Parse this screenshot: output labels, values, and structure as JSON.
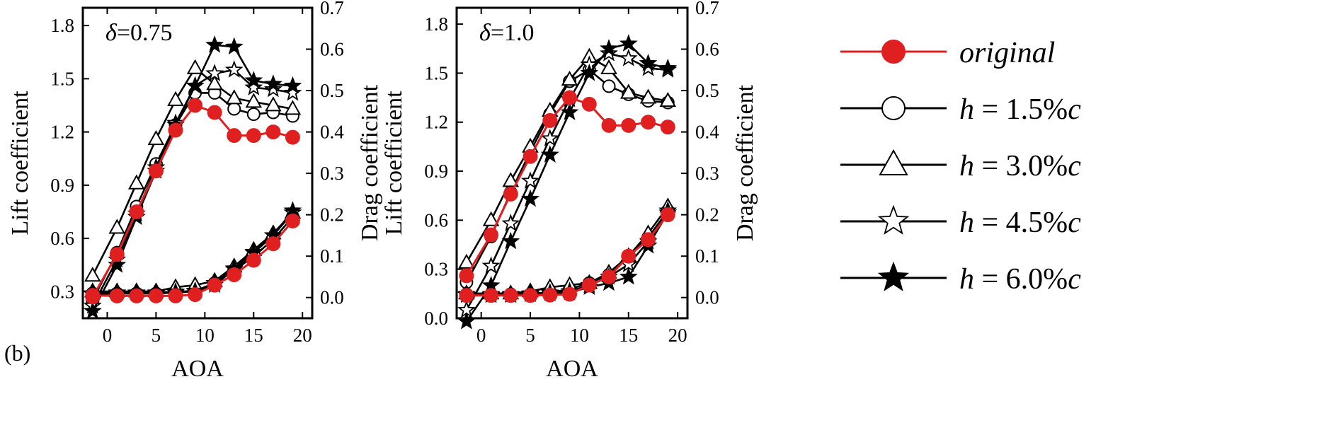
{
  "figure_label": "(b)",
  "colors": {
    "original": "#e02020",
    "modified": "#000000"
  },
  "legend": [
    {
      "key": "original",
      "parts": [
        "original"
      ],
      "marker": "circle",
      "filled": true,
      "color": "#e02020"
    },
    {
      "key": "h15",
      "parts": [
        "h",
        " = 1.5%",
        "c"
      ],
      "marker": "circle",
      "filled": false,
      "color": "#000000"
    },
    {
      "key": "h30",
      "parts": [
        "h",
        " = 3.0%",
        "c"
      ],
      "marker": "triangle",
      "filled": false,
      "color": "#000000"
    },
    {
      "key": "h45",
      "parts": [
        "h",
        " = 4.5%",
        "c"
      ],
      "marker": "star",
      "filled": false,
      "color": "#000000"
    },
    {
      "key": "h60",
      "parts": [
        "h",
        " = 6.0%",
        "c"
      ],
      "marker": "star",
      "filled": true,
      "color": "#000000"
    }
  ],
  "chart_data": [
    {
      "type": "line",
      "panel_label": {
        "symbol": "δ",
        "value": "=0.75"
      },
      "xlabel": "AOA",
      "ylabel_left": "Lift coefficient",
      "ylabel_right": "Drag coefficient",
      "xlim": [
        -2.5,
        21
      ],
      "ylim_left": [
        0.15,
        1.9
      ],
      "ylim_right": [
        -0.05,
        0.7
      ],
      "xticks": [
        "0",
        "5",
        "10",
        "15",
        "20"
      ],
      "xtick_values": [
        0,
        5,
        10,
        15,
        20
      ],
      "yticks_left": [
        "0.3",
        "0.6",
        "0.9",
        "1.2",
        "1.5",
        "1.8"
      ],
      "ytick_values_left": [
        0.3,
        0.6,
        0.9,
        1.2,
        1.5,
        1.8
      ],
      "yticks_right": [
        "0.0",
        "0.1",
        "0.2",
        "0.3",
        "0.4",
        "0.5",
        "0.6",
        "0.7"
      ],
      "ytick_values_right": [
        0.0,
        0.1,
        0.2,
        0.3,
        0.4,
        0.5,
        0.6,
        0.7
      ],
      "series": [
        {
          "name": "original",
          "axis": "lift",
          "x": [
            -1.5,
            1,
            3,
            5,
            7,
            9,
            11,
            13,
            15,
            17,
            19
          ],
          "values": [
            0.27,
            0.51,
            0.75,
            0.98,
            1.21,
            1.35,
            1.31,
            1.18,
            1.18,
            1.2,
            1.17
          ]
        },
        {
          "name": "h = 1.5%c",
          "axis": "lift",
          "x": [
            -1.5,
            1,
            3,
            5,
            7,
            9,
            11,
            13,
            15,
            17,
            19
          ],
          "values": [
            0.25,
            0.52,
            0.78,
            1.02,
            1.24,
            1.42,
            1.42,
            1.33,
            1.3,
            1.31,
            1.29
          ]
        },
        {
          "name": "h = 3.0%c",
          "axis": "lift",
          "x": [
            -1.5,
            1,
            3,
            5,
            7,
            9,
            11,
            13,
            15,
            17,
            19
          ],
          "values": [
            0.39,
            0.66,
            0.91,
            1.16,
            1.38,
            1.56,
            1.47,
            1.39,
            1.37,
            1.35,
            1.33
          ]
        },
        {
          "name": "h = 4.5%c",
          "axis": "lift",
          "x": [
            -1.5,
            1,
            3,
            5,
            7,
            9,
            11,
            13,
            15,
            17,
            19
          ],
          "values": [
            0.22,
            0.48,
            0.74,
            1.0,
            1.25,
            1.46,
            1.53,
            1.55,
            1.45,
            1.44,
            1.42
          ]
        },
        {
          "name": "h = 6.0%c",
          "axis": "lift",
          "x": [
            -1.5,
            1,
            3,
            5,
            7,
            9,
            11,
            13,
            15,
            17,
            19
          ],
          "values": [
            0.19,
            0.45,
            0.72,
            0.98,
            1.24,
            1.46,
            1.69,
            1.68,
            1.49,
            1.47,
            1.46
          ]
        },
        {
          "name": "original",
          "axis": "drag",
          "x": [
            -1.5,
            1,
            3,
            5,
            7,
            9,
            11,
            13,
            15,
            17,
            19
          ],
          "values": [
            0.005,
            0.004,
            0.004,
            0.004,
            0.004,
            0.007,
            0.03,
            0.055,
            0.09,
            0.13,
            0.185
          ]
        },
        {
          "name": "h = 1.5%c",
          "axis": "drag",
          "x": [
            -1.5,
            1,
            3,
            5,
            7,
            9,
            11,
            13,
            15,
            17,
            19
          ],
          "values": [
            0.01,
            0.01,
            0.01,
            0.01,
            0.012,
            0.015,
            0.035,
            0.065,
            0.1,
            0.14,
            0.195
          ]
        },
        {
          "name": "h = 3.0%c",
          "axis": "drag",
          "x": [
            -1.5,
            1,
            3,
            5,
            7,
            9,
            11,
            13,
            15,
            17,
            19
          ],
          "values": [
            0.015,
            0.015,
            0.015,
            0.015,
            0.025,
            0.03,
            0.04,
            0.075,
            0.115,
            0.155,
            0.205
          ]
        },
        {
          "name": "h = 4.5%c",
          "axis": "drag",
          "x": [
            -1.5,
            1,
            3,
            5,
            7,
            9,
            11,
            13,
            15,
            17,
            19
          ],
          "values": [
            0.01,
            0.012,
            0.012,
            0.012,
            0.014,
            0.016,
            0.035,
            0.07,
            0.11,
            0.15,
            0.205
          ]
        },
        {
          "name": "h = 6.0%c",
          "axis": "drag",
          "x": [
            -1.5,
            1,
            3,
            5,
            7,
            9,
            11,
            13,
            15,
            17,
            19
          ],
          "values": [
            0.008,
            0.01,
            0.01,
            0.01,
            0.012,
            0.015,
            0.03,
            0.068,
            0.108,
            0.15,
            0.21
          ]
        }
      ]
    },
    {
      "type": "line",
      "panel_label": {
        "symbol": "δ",
        "value": "=1.0"
      },
      "xlabel": "AOA",
      "ylabel_left": "Lift coefficient",
      "ylabel_right": "Drag coefficient",
      "xlim": [
        -2.5,
        21
      ],
      "ylim_left": [
        0.0,
        1.9
      ],
      "ylim_right": [
        -0.05,
        0.7
      ],
      "xticks": [
        "0",
        "5",
        "10",
        "15",
        "20"
      ],
      "xtick_values": [
        0,
        5,
        10,
        15,
        20
      ],
      "yticks_left": [
        "0.0",
        "0.3",
        "0.6",
        "0.9",
        "1.2",
        "1.5",
        "1.8"
      ],
      "ytick_values_left": [
        0.0,
        0.3,
        0.6,
        0.9,
        1.2,
        1.5,
        1.8
      ],
      "yticks_right": [
        "0.0",
        "0.1",
        "0.2",
        "0.3",
        "0.4",
        "0.5",
        "0.6",
        "0.7"
      ],
      "ytick_values_right": [
        0.0,
        0.1,
        0.2,
        0.3,
        0.4,
        0.5,
        0.6,
        0.7
      ],
      "series": [
        {
          "name": "original",
          "axis": "lift",
          "x": [
            -1.5,
            1,
            3,
            5,
            7,
            9,
            11,
            13,
            15,
            17,
            19
          ],
          "values": [
            0.26,
            0.51,
            0.76,
            0.99,
            1.21,
            1.35,
            1.31,
            1.18,
            1.18,
            1.2,
            1.17
          ]
        },
        {
          "name": "h = 1.5%c",
          "axis": "lift",
          "x": [
            -1.5,
            1,
            3,
            5,
            7,
            9,
            11,
            13,
            15,
            17,
            19
          ],
          "values": [
            0.22,
            0.5,
            0.77,
            1.02,
            1.25,
            1.45,
            1.52,
            1.42,
            1.37,
            1.33,
            1.32
          ]
        },
        {
          "name": "h = 3.0%c",
          "axis": "lift",
          "x": [
            -1.5,
            1,
            3,
            5,
            7,
            9,
            11,
            13,
            15,
            17,
            19
          ],
          "values": [
            0.34,
            0.6,
            0.84,
            1.05,
            1.27,
            1.46,
            1.6,
            1.53,
            1.38,
            1.35,
            1.33
          ]
        },
        {
          "name": "h = 4.5%c",
          "axis": "lift",
          "x": [
            -1.5,
            1,
            3,
            5,
            7,
            9,
            11,
            13,
            15,
            17,
            19
          ],
          "values": [
            0.05,
            0.32,
            0.58,
            0.84,
            1.1,
            1.34,
            1.55,
            1.62,
            1.59,
            1.53,
            1.52
          ]
        },
        {
          "name": "h = 6.0%c",
          "axis": "lift",
          "x": [
            -1.5,
            1,
            3,
            5,
            7,
            9,
            11,
            13,
            15,
            17,
            19
          ],
          "values": [
            -0.02,
            0.2,
            0.47,
            0.73,
            1.0,
            1.26,
            1.5,
            1.65,
            1.68,
            1.56,
            1.53
          ]
        },
        {
          "name": "original",
          "axis": "drag",
          "x": [
            -1.5,
            1,
            3,
            5,
            7,
            9,
            11,
            13,
            15,
            17,
            19
          ],
          "values": [
            0.005,
            0.005,
            0.005,
            0.005,
            0.006,
            0.008,
            0.03,
            0.05,
            0.1,
            0.14,
            0.2
          ]
        },
        {
          "name": "h = 1.5%c",
          "axis": "drag",
          "x": [
            -1.5,
            1,
            3,
            5,
            7,
            9,
            11,
            13,
            15,
            17,
            19
          ],
          "values": [
            0.008,
            0.008,
            0.008,
            0.008,
            0.012,
            0.02,
            0.035,
            0.055,
            0.1,
            0.145,
            0.21
          ]
        },
        {
          "name": "h = 3.0%c",
          "axis": "drag",
          "x": [
            -1.5,
            1,
            3,
            5,
            7,
            9,
            11,
            13,
            15,
            17,
            19
          ],
          "values": [
            0.01,
            0.01,
            0.01,
            0.015,
            0.025,
            0.03,
            0.035,
            0.06,
            0.1,
            0.155,
            0.22
          ]
        },
        {
          "name": "h = 4.5%c",
          "axis": "drag",
          "x": [
            -1.5,
            1,
            3,
            5,
            7,
            9,
            11,
            13,
            15,
            17,
            19
          ],
          "values": [
            0.008,
            0.008,
            0.008,
            0.01,
            0.012,
            0.015,
            0.03,
            0.05,
            0.08,
            0.135,
            0.21
          ]
        },
        {
          "name": "h = 6.0%c",
          "axis": "drag",
          "x": [
            -1.5,
            1,
            3,
            5,
            7,
            9,
            11,
            13,
            15,
            17,
            19
          ],
          "values": [
            0.006,
            0.006,
            0.006,
            0.008,
            0.01,
            0.012,
            0.025,
            0.035,
            0.05,
            0.125,
            0.205
          ]
        }
      ]
    }
  ]
}
